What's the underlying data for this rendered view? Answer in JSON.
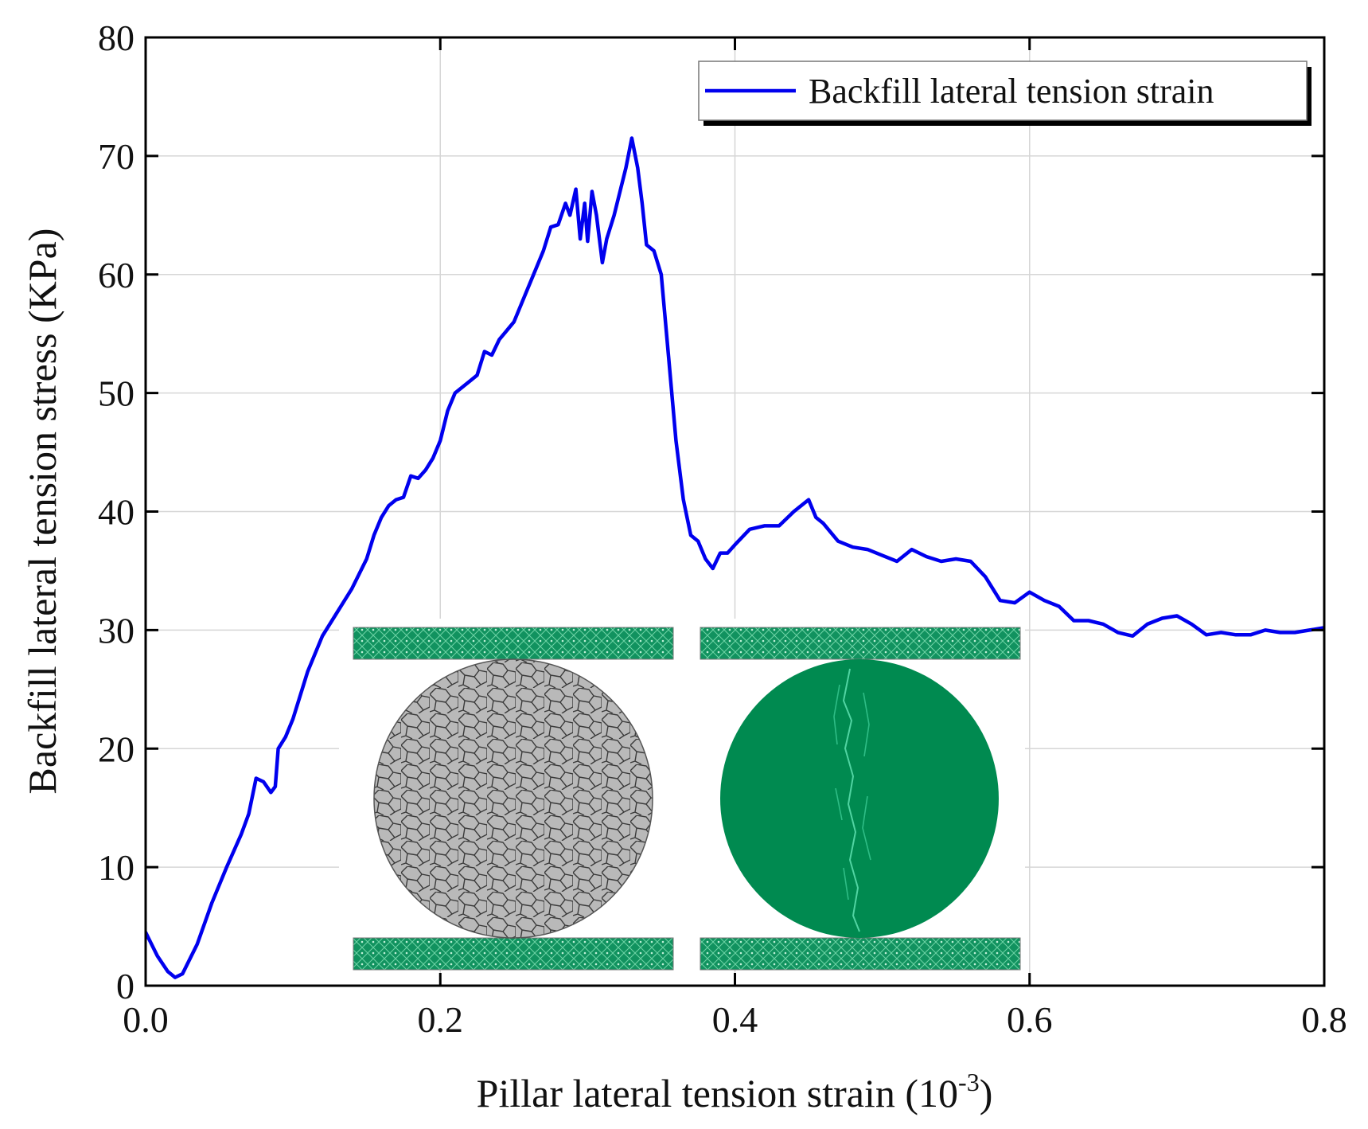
{
  "chart_data": {
    "type": "line",
    "xlabel": "Pillar lateral tension strain (10",
    "xlabel_sup": "-3",
    "xlabel_tail": ")",
    "ylabel": "Backfill lateral tension stress (KPa)",
    "xlim": [
      0,
      0.8
    ],
    "ylim": [
      0,
      80
    ],
    "x_ticks": [
      "0.0",
      "0.2",
      "0.4",
      "0.6",
      "0.8"
    ],
    "y_ticks": [
      "0",
      "10",
      "20",
      "30",
      "40",
      "50",
      "60",
      "70",
      "80"
    ],
    "grid": true,
    "legend_position": "top-right",
    "series": [
      {
        "name": "Backfill lateral tension strain",
        "color": "#0000ee",
        "points": [
          [
            0.0,
            4.5
          ],
          [
            0.008,
            2.5
          ],
          [
            0.015,
            1.2
          ],
          [
            0.02,
            0.7
          ],
          [
            0.025,
            1.0
          ],
          [
            0.035,
            3.5
          ],
          [
            0.045,
            7.0
          ],
          [
            0.055,
            10.0
          ],
          [
            0.065,
            12.8
          ],
          [
            0.07,
            14.5
          ],
          [
            0.075,
            17.5
          ],
          [
            0.08,
            17.2
          ],
          [
            0.085,
            16.3
          ],
          [
            0.088,
            16.8
          ],
          [
            0.09,
            20.0
          ],
          [
            0.095,
            21.0
          ],
          [
            0.1,
            22.5
          ],
          [
            0.11,
            26.5
          ],
          [
            0.12,
            29.5
          ],
          [
            0.13,
            31.5
          ],
          [
            0.14,
            33.5
          ],
          [
            0.15,
            36.0
          ],
          [
            0.155,
            38.0
          ],
          [
            0.16,
            39.5
          ],
          [
            0.165,
            40.5
          ],
          [
            0.17,
            41.0
          ],
          [
            0.175,
            41.2
          ],
          [
            0.18,
            43.0
          ],
          [
            0.185,
            42.8
          ],
          [
            0.19,
            43.5
          ],
          [
            0.195,
            44.5
          ],
          [
            0.2,
            46.0
          ],
          [
            0.205,
            48.5
          ],
          [
            0.21,
            50.0
          ],
          [
            0.22,
            51.0
          ],
          [
            0.225,
            51.5
          ],
          [
            0.23,
            53.5
          ],
          [
            0.235,
            53.2
          ],
          [
            0.24,
            54.5
          ],
          [
            0.25,
            56.0
          ],
          [
            0.26,
            59.0
          ],
          [
            0.265,
            60.5
          ],
          [
            0.27,
            62.0
          ],
          [
            0.275,
            64.0
          ],
          [
            0.28,
            64.2
          ],
          [
            0.285,
            66.0
          ],
          [
            0.288,
            65.0
          ],
          [
            0.292,
            67.2
          ],
          [
            0.295,
            63.0
          ],
          [
            0.298,
            66.0
          ],
          [
            0.3,
            62.8
          ],
          [
            0.303,
            67.0
          ],
          [
            0.306,
            65.0
          ],
          [
            0.31,
            61.0
          ],
          [
            0.313,
            63.0
          ],
          [
            0.318,
            65.0
          ],
          [
            0.322,
            67.0
          ],
          [
            0.326,
            69.0
          ],
          [
            0.33,
            71.5
          ],
          [
            0.334,
            69.0
          ],
          [
            0.337,
            66.0
          ],
          [
            0.34,
            62.5
          ],
          [
            0.345,
            62.0
          ],
          [
            0.35,
            60.0
          ],
          [
            0.355,
            53.0
          ],
          [
            0.36,
            46.0
          ],
          [
            0.365,
            41.0
          ],
          [
            0.37,
            38.0
          ],
          [
            0.375,
            37.5
          ],
          [
            0.38,
            36.0
          ],
          [
            0.385,
            35.2
          ],
          [
            0.39,
            36.5
          ],
          [
            0.395,
            36.5
          ],
          [
            0.4,
            37.2
          ],
          [
            0.41,
            38.5
          ],
          [
            0.42,
            38.8
          ],
          [
            0.43,
            38.8
          ],
          [
            0.44,
            40.0
          ],
          [
            0.45,
            41.0
          ],
          [
            0.455,
            39.5
          ],
          [
            0.46,
            39.0
          ],
          [
            0.47,
            37.5
          ],
          [
            0.48,
            37.0
          ],
          [
            0.49,
            36.8
          ],
          [
            0.5,
            36.3
          ],
          [
            0.51,
            35.8
          ],
          [
            0.52,
            36.8
          ],
          [
            0.53,
            36.2
          ],
          [
            0.54,
            35.8
          ],
          [
            0.55,
            36.0
          ],
          [
            0.56,
            35.8
          ],
          [
            0.57,
            34.5
          ],
          [
            0.58,
            32.5
          ],
          [
            0.59,
            32.3
          ],
          [
            0.6,
            33.2
          ],
          [
            0.61,
            32.5
          ],
          [
            0.62,
            32.0
          ],
          [
            0.63,
            30.8
          ],
          [
            0.64,
            30.8
          ],
          [
            0.65,
            30.5
          ],
          [
            0.66,
            29.8
          ],
          [
            0.67,
            29.5
          ],
          [
            0.68,
            30.5
          ],
          [
            0.69,
            31.0
          ],
          [
            0.7,
            31.2
          ],
          [
            0.71,
            30.5
          ],
          [
            0.72,
            29.6
          ],
          [
            0.73,
            29.8
          ],
          [
            0.74,
            29.6
          ],
          [
            0.75,
            29.6
          ],
          [
            0.76,
            30.0
          ],
          [
            0.77,
            29.8
          ],
          [
            0.78,
            29.8
          ],
          [
            0.79,
            30.0
          ],
          [
            0.8,
            30.2
          ]
        ]
      }
    ]
  },
  "inset": {
    "left_specimen_color": "#b8b8b8",
    "right_specimen_color": "#008a50",
    "platen_color": "#0f8a5a"
  }
}
